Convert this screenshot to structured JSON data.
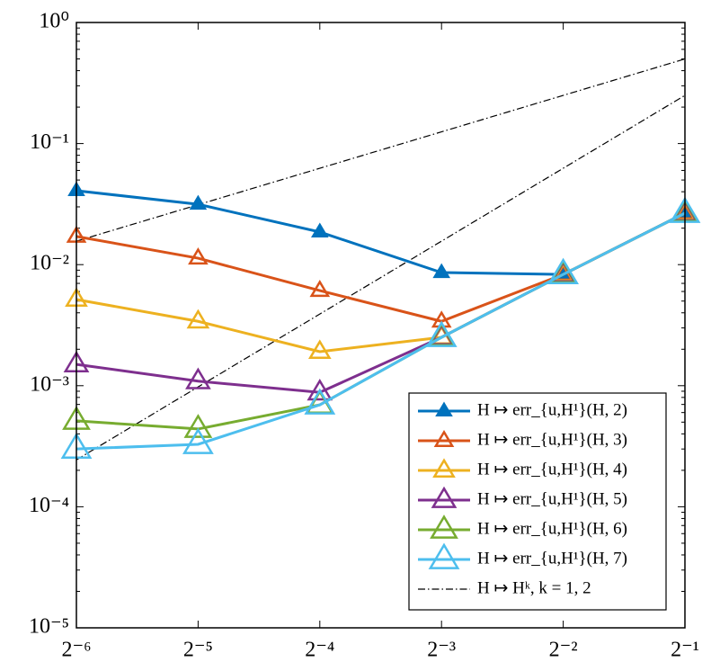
{
  "chart_data": {
    "type": "line",
    "xscale": "log",
    "yscale": "log",
    "x": [
      0.015625,
      0.03125,
      0.0625,
      0.125,
      0.25,
      0.5
    ],
    "series": [
      {
        "name": "H ↦ err_{u,H¹}(H, 2)",
        "color": "#0072bd",
        "filled": true,
        "values": [
          0.0408,
          0.0315,
          0.0186,
          0.0086,
          0.0083,
          0.0266
        ]
      },
      {
        "name": "H ↦ err_{u,H¹}(H, 3)",
        "color": "#d95319",
        "filled": false,
        "values": [
          0.0171,
          0.0113,
          0.0061,
          0.0034,
          0.0083,
          0.0266
        ]
      },
      {
        "name": "H ↦ err_{u,H¹}(H, 4)",
        "color": "#edb120",
        "filled": false,
        "values": [
          0.00515,
          0.0034,
          0.00191,
          0.00251,
          0.0083,
          0.0266
        ]
      },
      {
        "name": "H ↦ err_{u,H¹}(H, 5)",
        "color": "#7e2f8e",
        "filled": false,
        "values": [
          0.0015,
          0.00109,
          0.00088,
          0.00251,
          0.0083,
          0.0266
        ]
      },
      {
        "name": "H ↦ err_{u,H¹}(H, 6)",
        "color": "#77ac30",
        "filled": false,
        "values": [
          0.000512,
          0.000439,
          0.000695,
          0.00251,
          0.0083,
          0.0266
        ]
      },
      {
        "name": "H ↦ err_{u,H¹}(H, 7)",
        "color": "#4dbeee",
        "filled": false,
        "values": [
          0.0003,
          0.000328,
          0.000695,
          0.00251,
          0.0083,
          0.0266
        ]
      }
    ],
    "reference": {
      "name": "H ↦ Hᵏ, k = 1, 2",
      "color": "#000000",
      "lines": [
        [
          0.015625,
          0.03125,
          0.0625,
          0.125,
          0.25,
          0.5
        ],
        [
          0.000244140625,
          0.0009765625,
          0.00390625,
          0.015625,
          0.0625,
          0.25
        ]
      ]
    },
    "xlim": [
      0.015625,
      0.5
    ],
    "ylim": [
      1e-05,
      1
    ],
    "xticks": [
      {
        "value": 0.015625,
        "label": "2⁻⁶"
      },
      {
        "value": 0.03125,
        "label": "2⁻⁵"
      },
      {
        "value": 0.0625,
        "label": "2⁻⁴"
      },
      {
        "value": 0.125,
        "label": "2⁻³"
      },
      {
        "value": 0.25,
        "label": "2⁻²"
      },
      {
        "value": 0.5,
        "label": "2⁻¹"
      }
    ],
    "yticks": [
      {
        "value": 1e-05,
        "label": "10⁻⁵"
      },
      {
        "value": 0.0001,
        "label": "10⁻⁴"
      },
      {
        "value": 0.001,
        "label": "10⁻³"
      },
      {
        "value": 0.01,
        "label": "10⁻²"
      },
      {
        "value": 0.1,
        "label": "10⁻¹"
      },
      {
        "value": 1,
        "label": "10⁰"
      }
    ],
    "legend": "lower right"
  }
}
